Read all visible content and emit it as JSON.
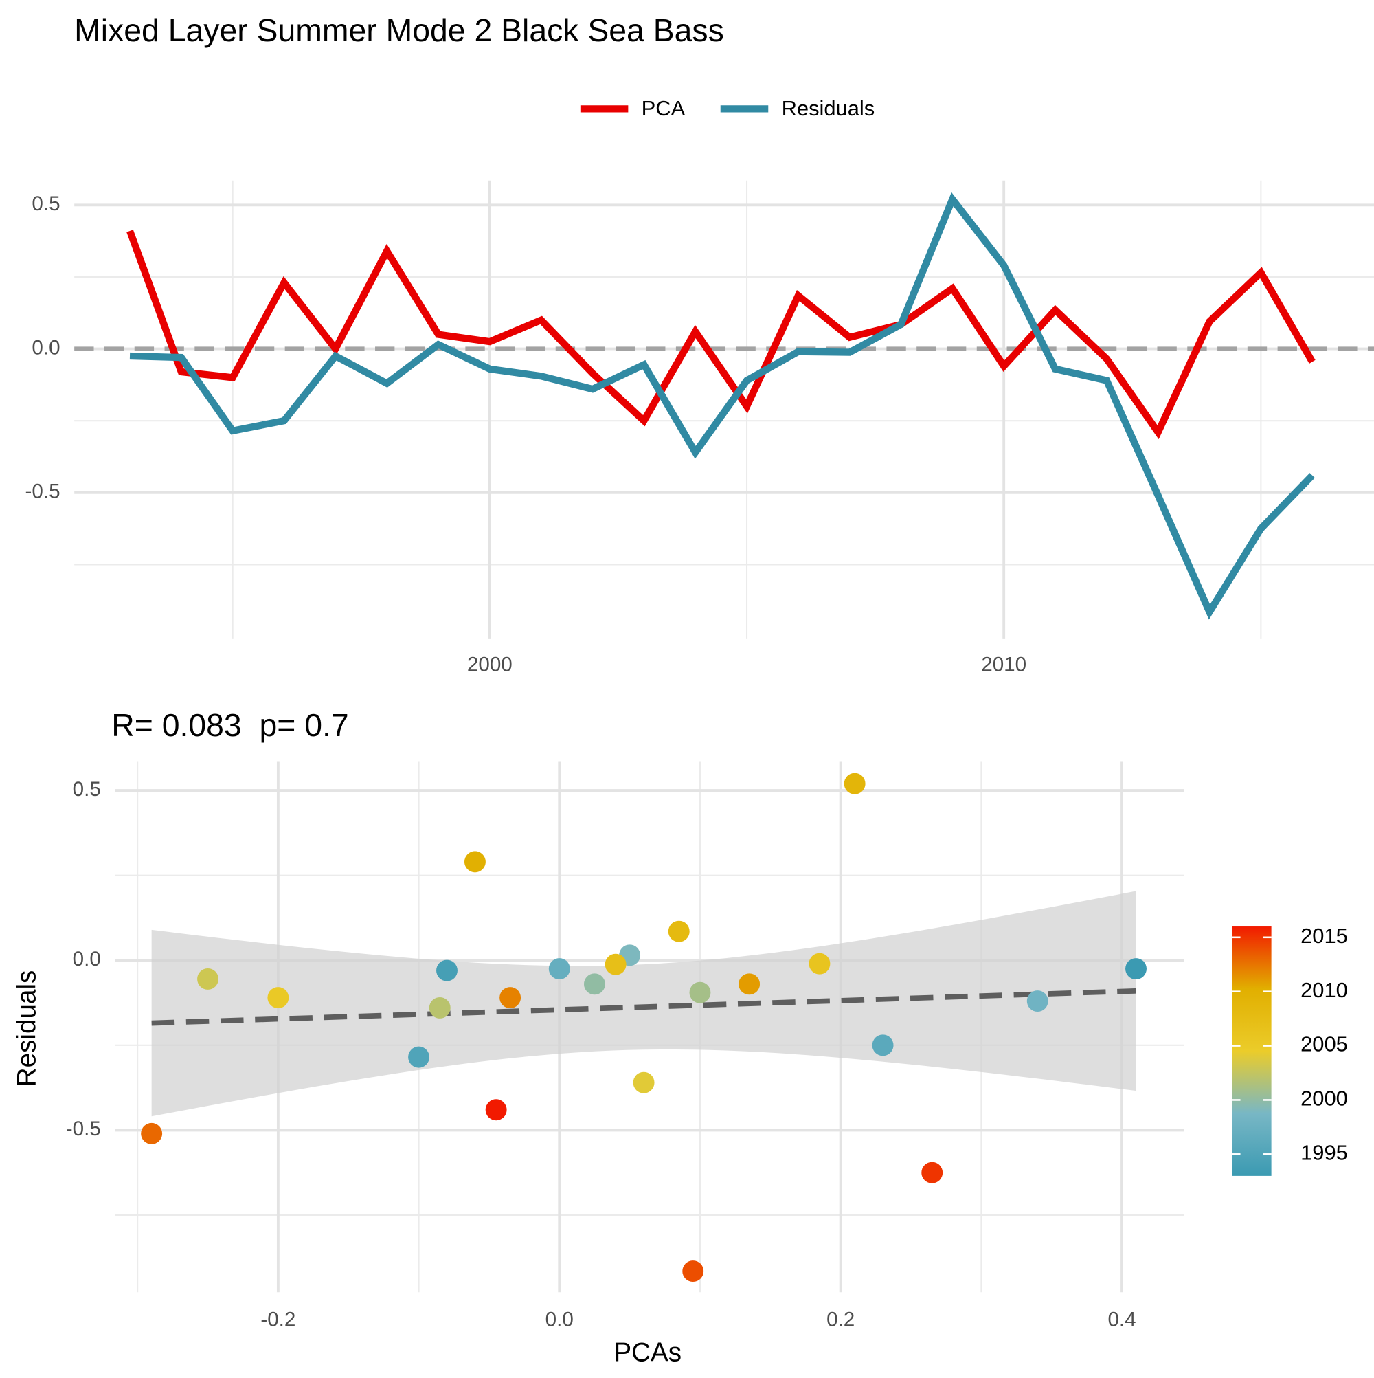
{
  "chart_data": [
    {
      "type": "line",
      "title": "Mixed Layer Summer Mode 2 Black Sea Bass",
      "x": [
        1993,
        1994,
        1995,
        1996,
        1997,
        1998,
        1999,
        2000,
        2001,
        2002,
        2003,
        2004,
        2005,
        2006,
        2007,
        2008,
        2009,
        2010,
        2011,
        2012,
        2013,
        2014,
        2015,
        2016
      ],
      "series": [
        {
          "name": "PCA",
          "color": "#e80000",
          "values": [
            0.41,
            -0.08,
            -0.1,
            0.23,
            0.0,
            0.34,
            0.05,
            0.025,
            0.1,
            -0.085,
            -0.25,
            0.06,
            -0.2,
            0.185,
            0.04,
            0.085,
            0.21,
            -0.06,
            0.135,
            -0.035,
            -0.29,
            0.095,
            0.265,
            -0.045
          ]
        },
        {
          "name": "Residuals",
          "color": "#318aa3",
          "values": [
            -0.025,
            -0.03,
            -0.285,
            -0.25,
            -0.025,
            -0.12,
            0.015,
            -0.07,
            -0.095,
            -0.14,
            -0.055,
            -0.36,
            -0.11,
            -0.01,
            -0.012,
            0.085,
            0.52,
            0.29,
            -0.07,
            -0.11,
            -0.51,
            -0.915,
            -0.625,
            -0.44
          ]
        }
      ],
      "xlim": [
        1991.92,
        2017.2
      ],
      "xticks": [
        2000,
        2010
      ],
      "minor_xticks": [
        1995,
        2005,
        2015
      ],
      "ylim": [
        -1.009,
        0.585
      ],
      "yticks": [
        0.5,
        {
          "value": 0,
          "label": "0.0"
        },
        -0.5
      ],
      "minor_yticks": [
        0.25,
        -0.25,
        -0.75
      ],
      "reference_line": 0,
      "grid": true,
      "legend": "top"
    },
    {
      "type": "scatter",
      "title": "R= 0.083  p= 0.7",
      "x_label": "PCAs",
      "y_label": "Residuals",
      "x": [
        0.41,
        -0.08,
        -0.1,
        0.23,
        0.0,
        0.34,
        0.05,
        0.025,
        0.1,
        -0.085,
        -0.25,
        0.06,
        -0.2,
        0.185,
        0.04,
        0.085,
        0.21,
        -0.06,
        0.135,
        -0.035,
        -0.29,
        0.095,
        0.265,
        -0.045
      ],
      "y": [
        -0.025,
        -0.03,
        -0.285,
        -0.25,
        -0.025,
        -0.12,
        0.015,
        -0.07,
        -0.095,
        -0.14,
        -0.055,
        -0.36,
        -0.11,
        -0.01,
        -0.012,
        0.085,
        0.52,
        0.29,
        -0.07,
        -0.11,
        -0.51,
        -0.915,
        -0.625,
        -0.44
      ],
      "color_values": [
        1993,
        1994,
        1995,
        1996,
        1997,
        1998,
        1999,
        2000,
        2001,
        2002,
        2003,
        2004,
        2005,
        2006,
        2007,
        2008,
        2009,
        2010,
        2011,
        2012,
        2013,
        2014,
        2015,
        2016
      ],
      "colorscale": [
        "#3B9AB2",
        "#78B7C5",
        "#EBCC2A",
        "#E1AF00",
        "#F21A00"
      ],
      "colorbar_lim": [
        1993,
        2016
      ],
      "colorbar_ticks": [
        1995,
        2000,
        2005,
        2010,
        2015
      ],
      "xlim": [
        -0.316,
        0.444
      ],
      "xticks": [
        -0.2,
        {
          "value": 0,
          "label": "0.0"
        },
        0.2,
        0.4
      ],
      "minor_xticks": [
        -0.3,
        -0.1,
        0.1,
        0.3
      ],
      "ylim": [
        -0.977,
        0.586
      ],
      "yticks": [
        0.5,
        {
          "value": 0,
          "label": "0.0"
        },
        -0.5
      ],
      "minor_yticks": [
        0.25,
        -0.25,
        -0.75
      ],
      "trend": "lm",
      "grid": true
    }
  ]
}
